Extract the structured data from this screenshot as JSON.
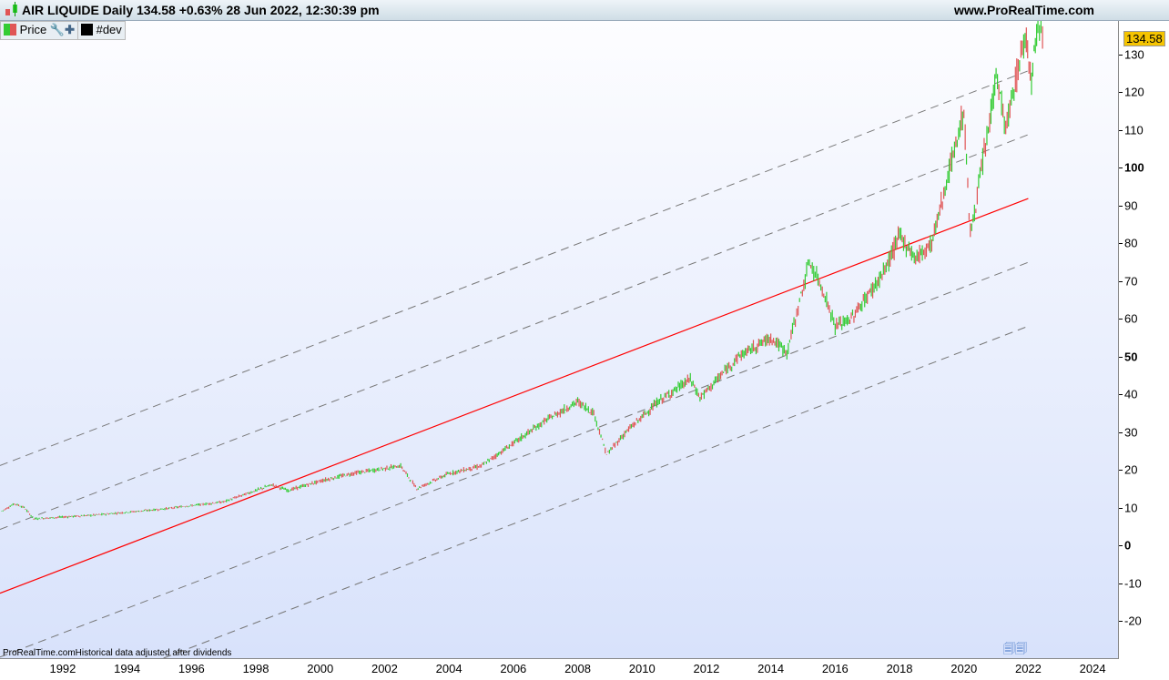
{
  "header": {
    "title": "AIR LIQUIDE Daily 134.58 +0.63% 28 Jun 2022, 12:30:39 pm",
    "site": "www.ProRealTime.com"
  },
  "legend": {
    "price": "Price",
    "indicator": "#dev"
  },
  "footnote": "ProRealTime.comHistorical data adjusted after dividends",
  "chart_data": {
    "type": "candlestick",
    "last_price": "134.58",
    "ylim": [
      -27,
      138
    ],
    "xlim": [
      1990.05,
      2024.8
    ],
    "y_ticks": [
      130,
      120,
      110,
      100,
      90,
      80,
      70,
      60,
      50,
      40,
      30,
      20,
      10,
      0,
      -10,
      -20
    ],
    "x_ticks": [
      "1992",
      "1994",
      "1996",
      "1998",
      "2000",
      "2002",
      "2004",
      "2006",
      "2008",
      "2010",
      "2012",
      "2014",
      "2016",
      "2018",
      "2020",
      "2022",
      "2024"
    ],
    "colors": {
      "up": "#33cc33",
      "down": "#e05555",
      "regression": "#ff0000",
      "channel": "#777777"
    },
    "price_path": [
      [
        1990.1,
        9
      ],
      [
        1990.5,
        11
      ],
      [
        1990.8,
        10
      ],
      [
        1991.1,
        7
      ],
      [
        1993,
        8
      ],
      [
        1995,
        9.5
      ],
      [
        1997,
        11.5
      ],
      [
        1998.5,
        16
      ],
      [
        1999,
        14.5
      ],
      [
        2000,
        17
      ],
      [
        2001,
        19
      ],
      [
        2002.5,
        21
      ],
      [
        2003,
        15
      ],
      [
        2004,
        19
      ],
      [
        2005,
        21
      ],
      [
        2006,
        27
      ],
      [
        2007,
        33
      ],
      [
        2008,
        38
      ],
      [
        2008.5,
        35
      ],
      [
        2008.9,
        24
      ],
      [
        2009.5,
        30
      ],
      [
        2010.5,
        38
      ],
      [
        2011.5,
        44
      ],
      [
        2011.8,
        39
      ],
      [
        2013,
        50
      ],
      [
        2014,
        55
      ],
      [
        2014.5,
        51
      ],
      [
        2015.2,
        75
      ],
      [
        2015.6,
        68
      ],
      [
        2016,
        58
      ],
      [
        2016.5,
        60
      ],
      [
        2017.5,
        72
      ],
      [
        2018,
        82
      ],
      [
        2018.5,
        76
      ],
      [
        2019,
        80
      ],
      [
        2020,
        115
      ],
      [
        2020.2,
        82
      ],
      [
        2020.8,
        112
      ],
      [
        2021,
        125
      ],
      [
        2021.3,
        110
      ],
      [
        2021.9,
        135
      ],
      [
        2022.1,
        124
      ],
      [
        2022.3,
        140
      ],
      [
        2022.49,
        134.58
      ]
    ],
    "regression": {
      "start": [
        1990.05,
        -12.7
      ],
      "end": [
        2022.0,
        91.8
      ]
    },
    "channel_offsets": [
      33.8,
      16.9,
      -16.9,
      -33.8
    ]
  }
}
